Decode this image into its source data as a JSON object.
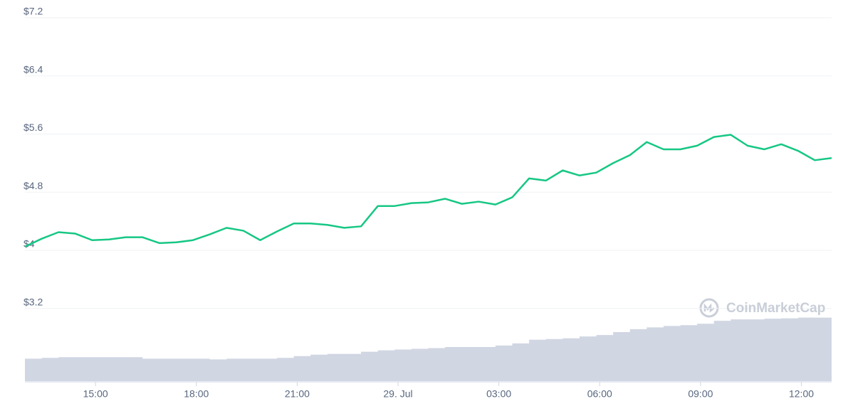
{
  "chart_data": {
    "type": "line",
    "annotations": [
      "CoinMarketCap"
    ],
    "x": [
      12.9,
      13.4,
      13.9,
      14.4,
      14.9,
      15.4,
      15.9,
      16.4,
      16.9,
      17.4,
      17.9,
      18.4,
      18.9,
      19.4,
      19.9,
      20.4,
      20.9,
      21.4,
      21.9,
      22.4,
      22.9,
      23.4,
      23.9,
      24.4,
      24.9,
      25.4,
      25.9,
      26.4,
      26.9,
      27.4,
      27.9,
      28.4,
      28.9,
      29.4,
      29.9,
      30.4,
      30.9,
      31.4,
      31.9,
      32.4,
      32.9,
      33.4,
      33.9,
      34.4,
      34.9,
      35.4,
      35.9,
      36.4,
      36.9
    ],
    "series": [
      {
        "color": "#16c784",
        "values": [
          4.05,
          4.16,
          4.25,
          4.23,
          4.14,
          4.15,
          4.18,
          4.18,
          4.1,
          4.11,
          4.14,
          4.22,
          4.31,
          4.27,
          4.14,
          4.26,
          4.37,
          4.37,
          4.35,
          4.31,
          4.33,
          4.61,
          4.61,
          4.65,
          4.66,
          4.71,
          4.64,
          4.67,
          4.63,
          4.73,
          4.99,
          4.96,
          5.1,
          5.03,
          5.07,
          5.2,
          5.31,
          5.49,
          5.39,
          5.39,
          5.44,
          5.56,
          5.59,
          5.44,
          5.39,
          5.46,
          5.37,
          5.24,
          5.27
        ]
      },
      {
        "color": "#d1d6e3",
        "axis": "y2",
        "values": [
          6.2,
          6.4,
          6.6,
          6.6,
          6.6,
          6.6,
          6.6,
          6.2,
          6.2,
          6.2,
          6.2,
          6.0,
          6.2,
          6.2,
          6.2,
          6.4,
          6.9,
          7.3,
          7.5,
          7.5,
          8.1,
          8.5,
          8.7,
          8.9,
          9.1,
          9.4,
          9.4,
          9.4,
          9.8,
          10.4,
          11.4,
          11.6,
          11.8,
          12.3,
          12.7,
          13.5,
          14.3,
          14.8,
          15.2,
          15.4,
          15.8,
          16.6,
          17.0,
          17.0,
          17.2,
          17.3,
          17.5,
          17.5,
          18.1
        ]
      }
    ],
    "xlim": [
      12.9,
      36.9
    ],
    "xticks": [
      {
        "value": 15,
        "label": "15:00"
      },
      {
        "value": 18,
        "label": "18:00"
      },
      {
        "value": 21,
        "label": "21:00"
      },
      {
        "value": 24,
        "label": "29. Jul"
      },
      {
        "value": 27,
        "label": "03:00"
      },
      {
        "value": 30,
        "label": "06:00"
      },
      {
        "value": 33,
        "label": "09:00"
      },
      {
        "value": 36,
        "label": "12:00"
      }
    ],
    "ylim": [
      2.2,
      7.2
    ],
    "yticks": [
      {
        "value": 3.2,
        "label": "$3.2"
      },
      {
        "value": 4,
        "label": "$4"
      },
      {
        "value": 4.8,
        "label": "$4.8"
      },
      {
        "value": 5.6,
        "label": "$5.6"
      },
      {
        "value": 6.4,
        "label": "$6.4"
      },
      {
        "value": 7.2,
        "label": "$7.2"
      }
    ],
    "y2lim": [
      0,
      100
    ],
    "grid": true
  }
}
